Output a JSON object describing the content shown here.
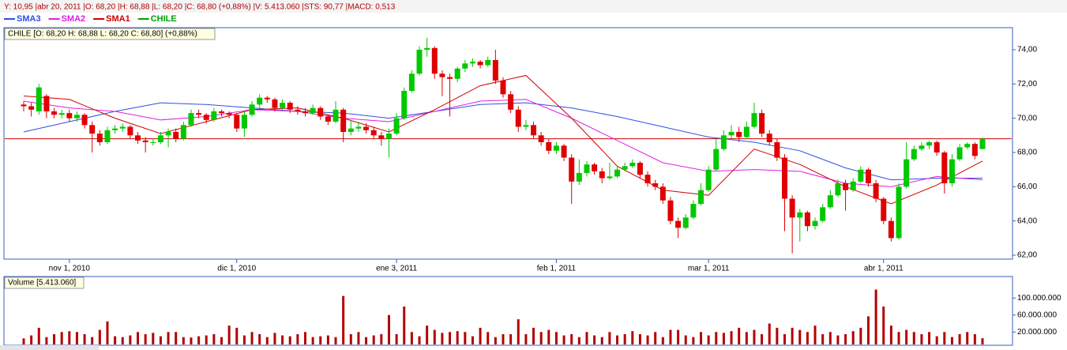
{
  "status_bar": "Y: 10,95 |abr 20, 2011 |O: 68,20 |H: 68,88 |L: 68,20 |C: 68,80 (+0,88%) |V: 5.413.060 |STS: 90,77 |MACD: 0,513",
  "chart_data": [
    {
      "type": "candlestick",
      "name": "CHILE",
      "color": "#00a000",
      "up_color": "#00c800",
      "down_color": "#e00000",
      "price_line_color": "#d00000",
      "label": "CHILE [O: 68,20  H: 68,88  L: 68,20  C: 68,80] (+0,88%)",
      "categories": [
        null,
        null,
        null,
        null,
        null,
        null,
        "nov 1, 2010",
        null,
        null,
        null,
        null,
        null,
        null,
        null,
        null,
        null,
        null,
        null,
        null,
        null,
        null,
        null,
        null,
        null,
        null,
        null,
        null,
        null,
        "dic 1, 2010",
        null,
        null,
        null,
        null,
        null,
        null,
        null,
        null,
        null,
        null,
        null,
        null,
        null,
        null,
        null,
        null,
        null,
        null,
        null,
        null,
        "ene 3, 2011",
        null,
        null,
        null,
        null,
        null,
        null,
        null,
        null,
        null,
        null,
        null,
        null,
        null,
        null,
        null,
        null,
        null,
        null,
        null,
        null,
        "feb 1, 2011",
        null,
        null,
        null,
        null,
        null,
        null,
        null,
        null,
        null,
        null,
        null,
        null,
        null,
        null,
        null,
        null,
        null,
        null,
        null,
        "mar 1, 2011",
        null,
        null,
        null,
        null,
        null,
        null,
        null,
        null,
        null,
        null,
        null,
        null,
        null,
        null,
        null,
        null,
        null,
        null,
        null,
        null,
        null,
        null,
        "abr 1, 2011",
        null,
        null,
        null,
        null,
        null,
        null,
        null,
        null,
        null,
        null,
        null,
        null,
        null
      ],
      "ohlc": [
        [
          70.8,
          71.0,
          70.4,
          70.7
        ],
        [
          70.7,
          70.9,
          70.1,
          70.5
        ],
        [
          70.4,
          72.0,
          70.2,
          71.8
        ],
        [
          71.3,
          71.4,
          70.0,
          70.4
        ],
        [
          70.4,
          70.6,
          70.0,
          70.2
        ],
        [
          70.2,
          70.5,
          70.0,
          70.3
        ],
        [
          70.3,
          70.5,
          69.8,
          70.0
        ],
        [
          70.0,
          70.4,
          69.8,
          70.2
        ],
        [
          70.2,
          70.3,
          69.4,
          69.6
        ],
        [
          69.6,
          69.8,
          68.0,
          69.1
        ],
        [
          69.1,
          69.3,
          68.4,
          68.6
        ],
        [
          68.6,
          69.5,
          68.5,
          69.3
        ],
        [
          69.3,
          69.6,
          69.1,
          69.4
        ],
        [
          69.4,
          69.7,
          69.2,
          69.5
        ],
        [
          69.5,
          69.6,
          68.8,
          69.0
        ],
        [
          69.0,
          69.2,
          68.5,
          68.7
        ],
        [
          68.7,
          68.9,
          68.0,
          68.6
        ],
        [
          68.6,
          68.8,
          68.4,
          68.6
        ],
        [
          68.6,
          69.2,
          68.5,
          69.0
        ],
        [
          69.0,
          69.4,
          68.3,
          69.2
        ],
        [
          69.2,
          69.4,
          68.6,
          68.8
        ],
        [
          68.8,
          69.8,
          68.7,
          69.6
        ],
        [
          69.6,
          70.5,
          69.5,
          70.3
        ],
        [
          70.3,
          70.5,
          70.0,
          70.2
        ],
        [
          70.2,
          70.3,
          69.7,
          69.9
        ],
        [
          69.9,
          70.6,
          69.8,
          70.4
        ],
        [
          70.4,
          70.5,
          70.1,
          70.3
        ],
        [
          70.3,
          70.4,
          70.0,
          70.2
        ],
        [
          70.2,
          70.3,
          69.2,
          69.4
        ],
        [
          69.4,
          70.4,
          68.9,
          70.2
        ],
        [
          70.2,
          71.0,
          70.1,
          70.8
        ],
        [
          70.8,
          71.4,
          70.6,
          71.2
        ],
        [
          71.2,
          71.3,
          70.9,
          71.1
        ],
        [
          71.1,
          71.2,
          70.4,
          70.6
        ],
        [
          70.6,
          71.1,
          70.5,
          70.9
        ],
        [
          70.9,
          71.0,
          70.3,
          70.5
        ],
        [
          70.5,
          70.7,
          70.2,
          70.4
        ],
        [
          70.4,
          70.6,
          70.1,
          70.3
        ],
        [
          70.3,
          70.8,
          70.2,
          70.6
        ],
        [
          70.6,
          70.7,
          69.9,
          70.1
        ],
        [
          70.1,
          70.2,
          69.6,
          69.8
        ],
        [
          69.8,
          71.0,
          69.7,
          70.5
        ],
        [
          70.5,
          70.6,
          68.6,
          69.2
        ],
        [
          69.2,
          69.9,
          69.0,
          69.4
        ],
        [
          69.4,
          69.8,
          69.2,
          69.5
        ],
        [
          69.5,
          69.7,
          69.1,
          69.3
        ],
        [
          69.3,
          69.5,
          68.8,
          69.0
        ],
        [
          69.0,
          69.2,
          68.4,
          68.8
        ],
        [
          68.8,
          69.4,
          67.7,
          69.1
        ],
        [
          69.1,
          70.3,
          69.0,
          70.0
        ],
        [
          70.0,
          71.8,
          69.9,
          71.6
        ],
        [
          71.6,
          72.8,
          71.5,
          72.6
        ],
        [
          72.6,
          74.2,
          72.5,
          74.0
        ],
        [
          74.0,
          74.7,
          73.6,
          74.1
        ],
        [
          74.1,
          74.2,
          72.3,
          72.6
        ],
        [
          72.6,
          72.8,
          71.3,
          72.4
        ],
        [
          72.4,
          72.6,
          70.1,
          72.3
        ],
        [
          72.3,
          73.0,
          72.1,
          72.9
        ],
        [
          72.9,
          73.4,
          72.7,
          73.2
        ],
        [
          73.2,
          73.5,
          73.0,
          73.3
        ],
        [
          73.3,
          73.4,
          72.9,
          73.1
        ],
        [
          73.1,
          73.6,
          73.0,
          73.4
        ],
        [
          73.4,
          74.0,
          72.0,
          72.2
        ],
        [
          72.2,
          72.4,
          71.2,
          71.4
        ],
        [
          71.4,
          71.6,
          70.3,
          70.5
        ],
        [
          70.5,
          70.7,
          69.2,
          69.5
        ],
        [
          69.5,
          69.9,
          69.3,
          69.6
        ],
        [
          69.6,
          69.8,
          68.8,
          69.0
        ],
        [
          69.0,
          69.2,
          68.4,
          68.6
        ],
        [
          68.6,
          68.8,
          67.9,
          68.1
        ],
        [
          68.1,
          68.6,
          67.9,
          68.4
        ],
        [
          68.4,
          68.5,
          67.5,
          67.7
        ],
        [
          67.7,
          67.9,
          65.0,
          66.3
        ],
        [
          66.3,
          67.6,
          66.1,
          66.8
        ],
        [
          66.8,
          67.5,
          66.6,
          67.3
        ],
        [
          67.3,
          67.4,
          66.7,
          66.9
        ],
        [
          66.9,
          67.1,
          66.2,
          66.5
        ],
        [
          66.5,
          67.4,
          66.4,
          66.6
        ],
        [
          66.6,
          67.2,
          66.5,
          67.0
        ],
        [
          67.0,
          67.4,
          66.9,
          67.2
        ],
        [
          67.2,
          67.6,
          67.1,
          67.4
        ],
        [
          67.4,
          67.5,
          66.5,
          66.7
        ],
        [
          66.7,
          66.9,
          66.0,
          66.2
        ],
        [
          66.2,
          66.4,
          65.8,
          66.0
        ],
        [
          66.0,
          66.2,
          65.0,
          65.2
        ],
        [
          65.2,
          65.4,
          63.8,
          64.0
        ],
        [
          64.0,
          64.2,
          63.0,
          63.6
        ],
        [
          63.6,
          64.4,
          63.5,
          64.2
        ],
        [
          64.2,
          65.2,
          64.1,
          65.0
        ],
        [
          65.0,
          66.2,
          64.9,
          65.8
        ],
        [
          65.8,
          67.2,
          65.7,
          67.0
        ],
        [
          67.0,
          68.8,
          66.9,
          68.2
        ],
        [
          68.2,
          69.3,
          68.1,
          69.0
        ],
        [
          69.0,
          69.6,
          68.8,
          69.2
        ],
        [
          69.2,
          69.5,
          68.6,
          68.9
        ],
        [
          68.9,
          69.8,
          68.8,
          69.5
        ],
        [
          69.5,
          70.9,
          69.4,
          70.3
        ],
        [
          70.3,
          70.5,
          68.9,
          69.1
        ],
        [
          69.1,
          69.3,
          68.4,
          68.6
        ],
        [
          68.6,
          68.8,
          67.5,
          67.7
        ],
        [
          67.7,
          67.9,
          63.4,
          65.3
        ],
        [
          65.3,
          65.5,
          62.1,
          64.2
        ],
        [
          64.2,
          64.7,
          62.8,
          64.5
        ],
        [
          64.5,
          64.6,
          63.4,
          63.7
        ],
        [
          63.7,
          64.2,
          63.5,
          64.0
        ],
        [
          64.0,
          65.0,
          63.9,
          64.8
        ],
        [
          64.8,
          65.8,
          64.7,
          65.5
        ],
        [
          65.5,
          66.4,
          65.4,
          66.2
        ],
        [
          66.2,
          66.4,
          64.6,
          65.8
        ],
        [
          65.8,
          66.5,
          65.7,
          66.3
        ],
        [
          66.3,
          67.2,
          66.2,
          67.0
        ],
        [
          67.0,
          67.1,
          66.0,
          66.2
        ],
        [
          66.2,
          66.4,
          65.1,
          65.3
        ],
        [
          65.3,
          65.4,
          63.8,
          64.0
        ],
        [
          64.0,
          64.2,
          62.8,
          63.0
        ],
        [
          63.0,
          66.2,
          62.9,
          66.0
        ],
        [
          66.0,
          68.6,
          65.9,
          67.6
        ],
        [
          67.6,
          68.4,
          67.5,
          68.2
        ],
        [
          68.2,
          68.6,
          68.1,
          68.4
        ],
        [
          68.4,
          68.7,
          68.2,
          68.6
        ],
        [
          68.6,
          68.7,
          67.8,
          68.0
        ],
        [
          68.0,
          68.1,
          65.6,
          66.2
        ],
        [
          66.2,
          67.9,
          66.0,
          67.6
        ],
        [
          67.6,
          68.5,
          67.5,
          68.3
        ],
        [
          68.3,
          68.6,
          68.2,
          68.5
        ],
        [
          68.5,
          68.6,
          67.6,
          67.8
        ],
        [
          68.2,
          68.88,
          68.2,
          68.8
        ]
      ],
      "series": [
        {
          "name": "SMA3",
          "color": "#3050e0",
          "x": [
            0,
            6,
            12,
            18,
            24,
            30,
            36,
            42,
            48,
            54,
            60,
            66,
            72,
            78,
            84,
            90,
            96,
            102,
            108,
            114,
            120,
            126
          ],
          "values": [
            69.2,
            69.8,
            70.4,
            70.9,
            70.8,
            70.6,
            70.4,
            70.3,
            70.0,
            70.4,
            70.8,
            70.9,
            70.6,
            70.1,
            69.5,
            68.9,
            68.6,
            68.1,
            67.1,
            66.4,
            66.5,
            66.5
          ]
        },
        {
          "name": "SMA2",
          "color": "#e020e0",
          "x": [
            0,
            6,
            12,
            18,
            24,
            30,
            36,
            42,
            48,
            54,
            60,
            66,
            72,
            78,
            84,
            90,
            96,
            102,
            108,
            114,
            120,
            126
          ],
          "values": [
            71.0,
            70.6,
            70.4,
            69.9,
            70.1,
            70.5,
            70.4,
            70.0,
            69.8,
            70.4,
            71.0,
            71.1,
            70.0,
            68.7,
            67.4,
            66.9,
            67.0,
            66.9,
            66.2,
            66.0,
            66.6,
            66.4
          ]
        },
        {
          "name": "SMA1",
          "color": "#d00000",
          "x": [
            0,
            6,
            12,
            18,
            24,
            30,
            36,
            42,
            48,
            54,
            60,
            66,
            72,
            78,
            84,
            90,
            96,
            102,
            108,
            114,
            120,
            126
          ],
          "values": [
            71.3,
            71.1,
            70.0,
            69.1,
            69.8,
            70.5,
            70.6,
            70.0,
            69.2,
            70.5,
            71.9,
            72.5,
            70.0,
            67.2,
            65.8,
            65.5,
            68.2,
            67.3,
            66.0,
            65.0,
            66.1,
            67.5
          ]
        }
      ],
      "ylim": [
        61.77,
        75.29
      ],
      "yticks": [
        {
          "value": 62,
          "label": "62,00"
        },
        {
          "value": 64,
          "label": "64,00"
        },
        {
          "value": 66,
          "label": "66,00"
        },
        {
          "value": 68,
          "label": "68,00"
        },
        {
          "value": 70,
          "label": "70,00"
        },
        {
          "value": 72,
          "label": "72,00"
        },
        {
          "value": 74,
          "label": "74,00"
        }
      ]
    },
    {
      "type": "bar",
      "label": "Volume [5.413.060]",
      "color": "#b40000",
      "values": [
        5000000,
        12000000,
        30000000,
        8000000,
        15000000,
        20000000,
        22000000,
        20000000,
        15000000,
        8000000,
        25000000,
        45000000,
        10000000,
        8000000,
        12000000,
        20000000,
        15000000,
        18000000,
        10000000,
        20000000,
        20000000,
        8000000,
        7000000,
        10000000,
        12000000,
        15000000,
        8000000,
        35000000,
        30000000,
        12000000,
        20000000,
        15000000,
        8000000,
        18000000,
        12000000,
        10000000,
        15000000,
        20000000,
        8000000,
        10000000,
        12000000,
        8000000,
        105000000,
        15000000,
        20000000,
        8000000,
        12000000,
        15000000,
        60000000,
        15000000,
        80000000,
        20000000,
        10000000,
        35000000,
        25000000,
        18000000,
        20000000,
        22000000,
        20000000,
        10000000,
        30000000,
        20000000,
        8000000,
        15000000,
        15000000,
        50000000,
        15000000,
        30000000,
        20000000,
        25000000,
        20000000,
        12000000,
        15000000,
        8000000,
        20000000,
        12000000,
        8000000,
        20000000,
        12000000,
        15000000,
        22000000,
        15000000,
        12000000,
        20000000,
        8000000,
        25000000,
        25000000,
        12000000,
        8000000,
        20000000,
        12000000,
        20000000,
        18000000,
        22000000,
        30000000,
        20000000,
        25000000,
        15000000,
        40000000,
        30000000,
        15000000,
        30000000,
        25000000,
        20000000,
        35000000,
        15000000,
        20000000,
        12000000,
        15000000,
        22000000,
        30000000,
        57000000,
        120000000,
        80000000,
        35000000,
        20000000,
        25000000,
        20000000,
        15000000,
        20000000,
        10000000,
        20000000,
        8000000,
        15000000,
        20000000,
        15000000,
        5413060
      ],
      "ylim": [
        0,
        150000000
      ],
      "yticks": [
        {
          "value": 20000000,
          "label": "20.000.000"
        },
        {
          "value": 60000000,
          "label": "60.000.000"
        },
        {
          "value": 100000000,
          "label": "100.000.000"
        }
      ]
    }
  ]
}
